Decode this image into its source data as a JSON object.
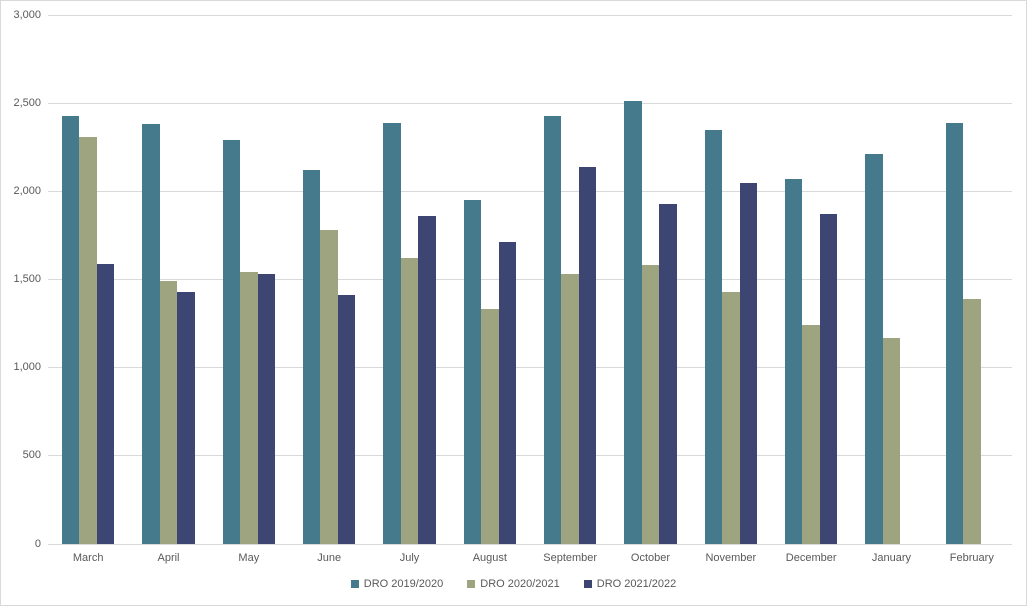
{
  "chart": {
    "background_color": "#FFFFFF",
    "border_color": "#D9D9D9",
    "gridline_color": "#D9D9D9",
    "axis_text_color": "#595959"
  },
  "chart_data": {
    "type": "bar",
    "title": "",
    "xlabel": "",
    "ylabel": "",
    "categories": [
      "March",
      "April",
      "May",
      "June",
      "July",
      "August",
      "September",
      "October",
      "November",
      "December",
      "January",
      "February"
    ],
    "series": [
      {
        "name": "DRO 2019/2020",
        "color": "#45798C",
        "values": [
          2430,
          2380,
          2290,
          2120,
          2390,
          1950,
          2430,
          2510,
          2350,
          2070,
          2210,
          2390
        ]
      },
      {
        "name": "DRO 2020/2021",
        "color": "#9EA47F",
        "values": [
          2310,
          1490,
          1540,
          1780,
          1620,
          1330,
          1530,
          1580,
          1430,
          1240,
          1170,
          1390
        ]
      },
      {
        "name": "DRO 2021/2022",
        "color": "#3D4572",
        "values": [
          1590,
          1430,
          1530,
          1410,
          1860,
          1710,
          2140,
          1930,
          2050,
          1870,
          null,
          null
        ]
      }
    ],
    "ylim": [
      0,
      3000
    ],
    "ytick_interval": 500,
    "ytick_labels": [
      "0",
      "500",
      "1,000",
      "1,500",
      "2,000",
      "2,500",
      "3,000"
    ],
    "grid": true,
    "legend_position": "bottom"
  }
}
